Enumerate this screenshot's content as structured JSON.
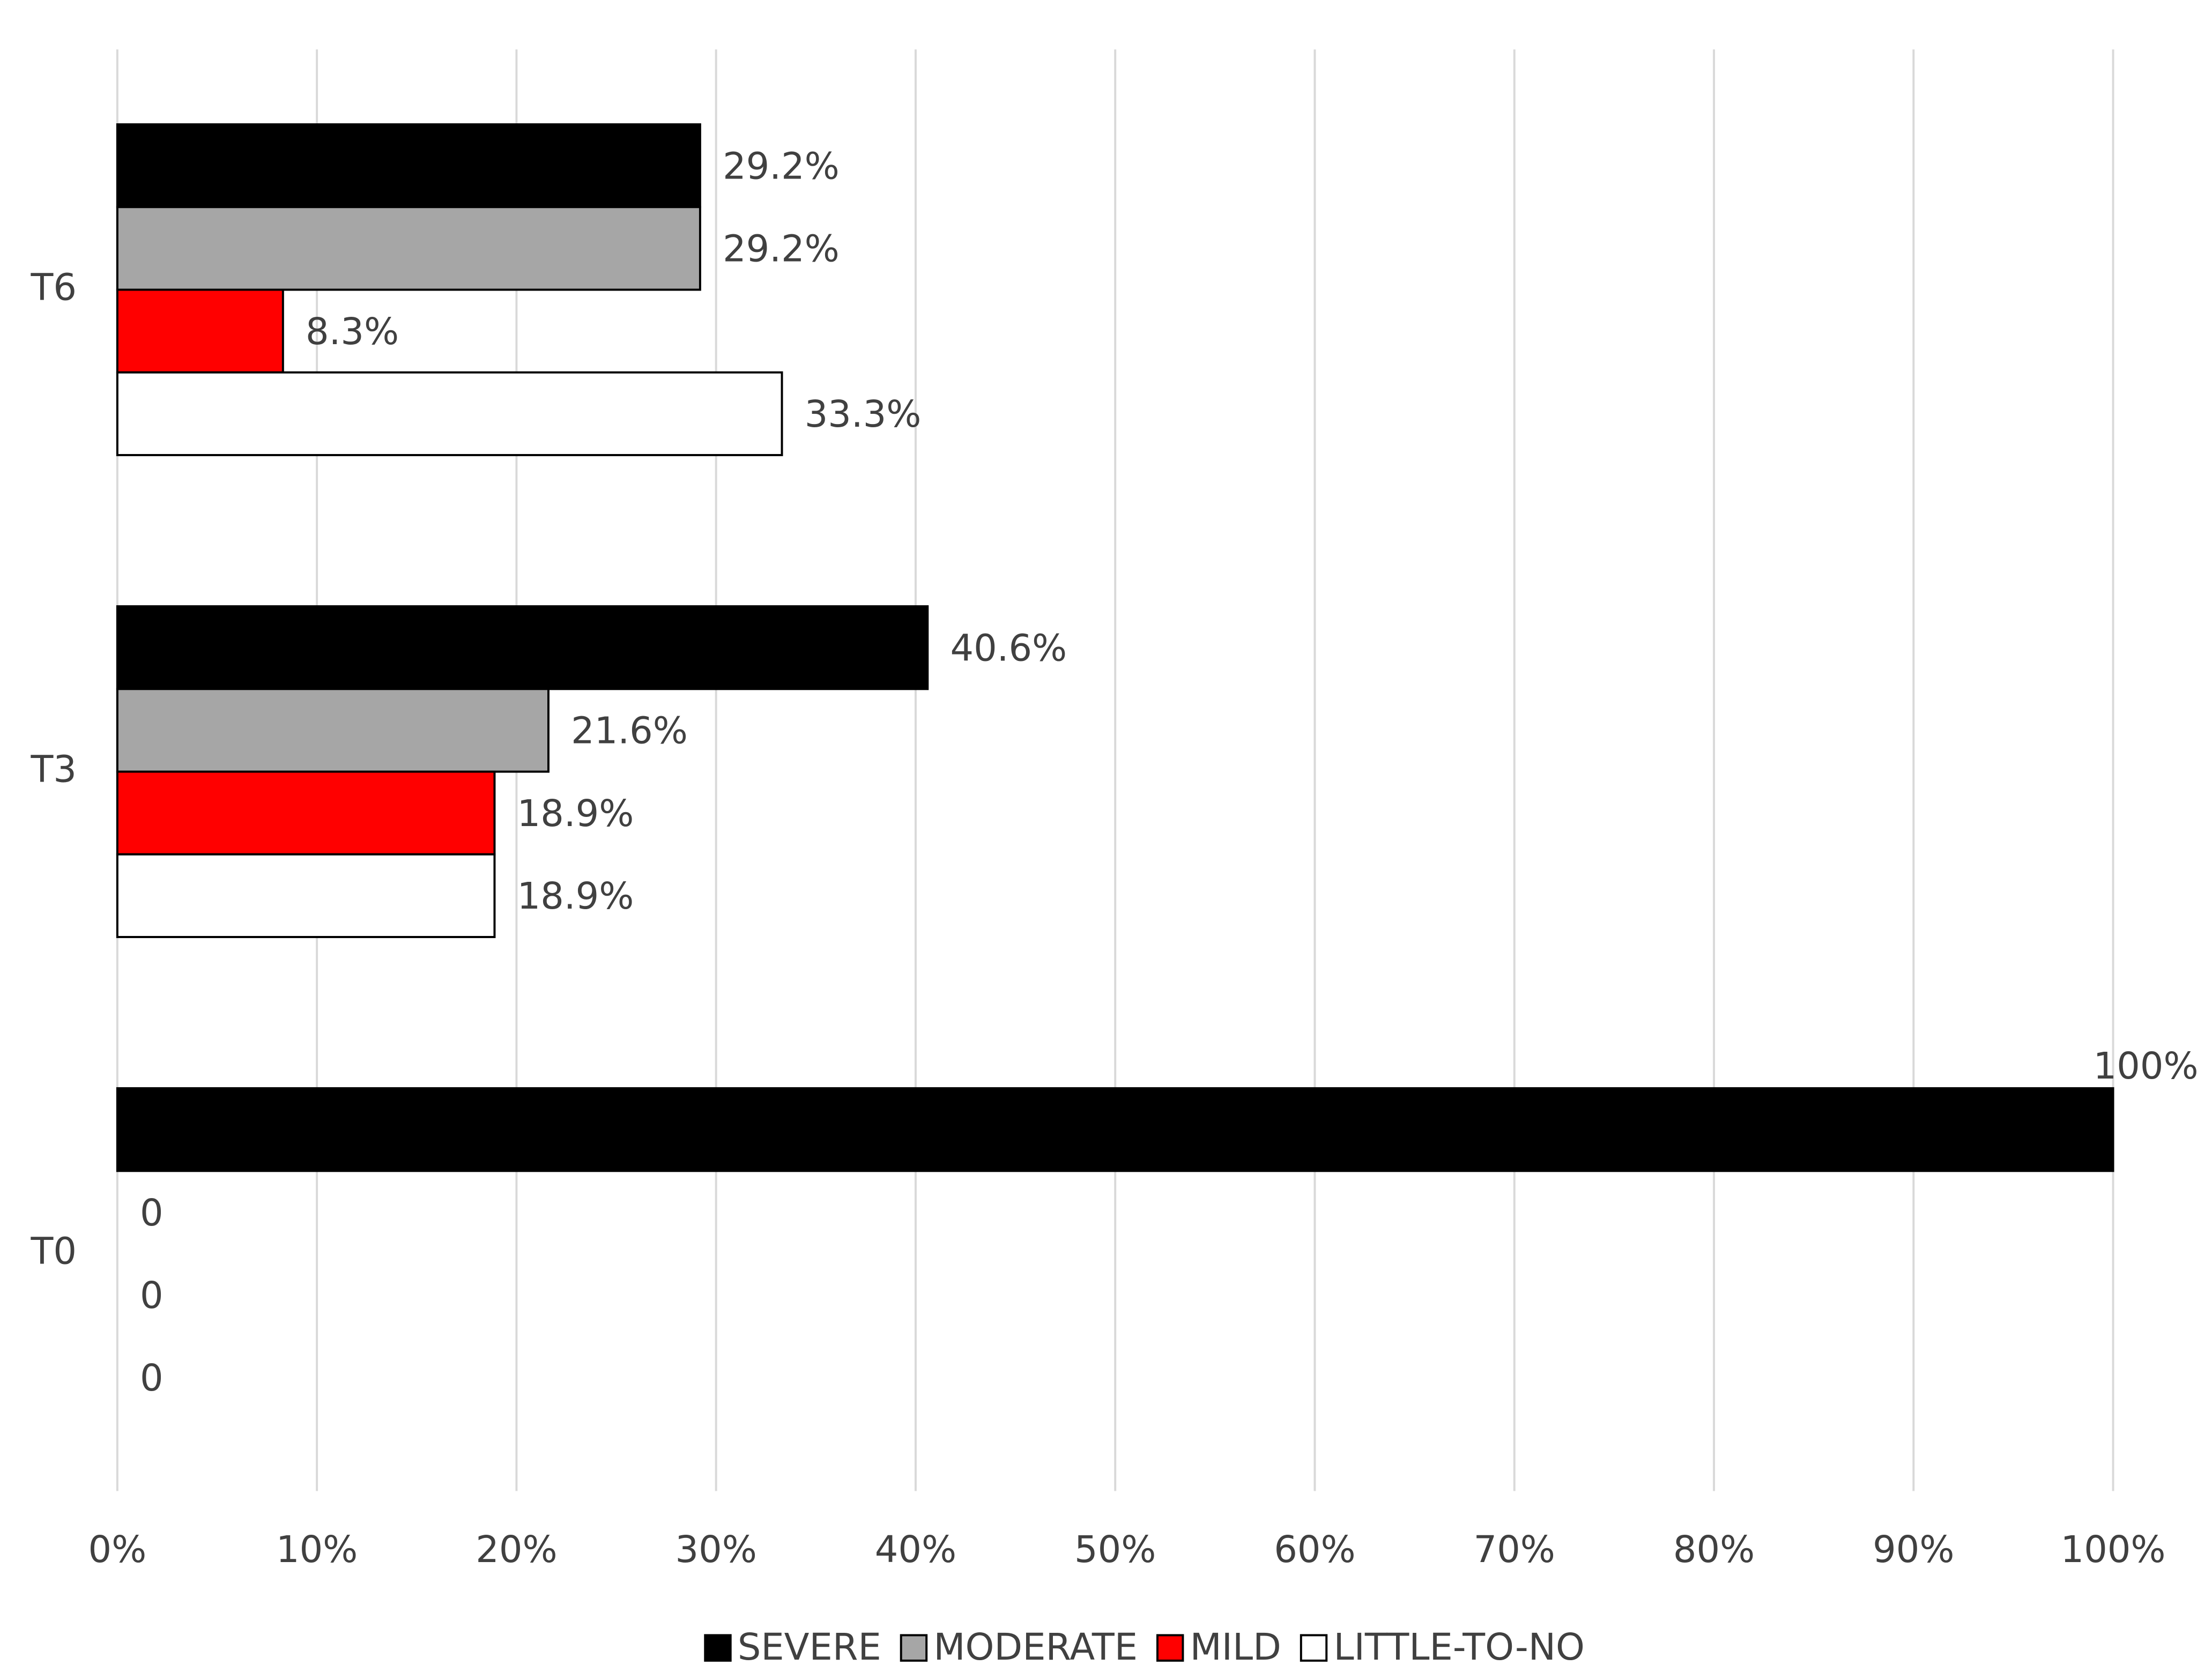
{
  "chart_data": {
    "type": "barh",
    "categories": [
      "T6",
      "T3",
      "T0"
    ],
    "series": [
      {
        "name": "SEVERE",
        "color": "#000000",
        "values": [
          29.2,
          40.6,
          100
        ],
        "value_labels": [
          "29.2%",
          "40.6%",
          "100%"
        ]
      },
      {
        "name": "MODERATE",
        "color": "#a6a6a6",
        "values": [
          29.2,
          21.6,
          0
        ],
        "value_labels": [
          "29.2%",
          "21.6%",
          "0"
        ]
      },
      {
        "name": "MILD",
        "color": "#ff0000",
        "values": [
          8.3,
          18.9,
          0
        ],
        "value_labels": [
          "8.3%",
          "18.9%",
          "0"
        ]
      },
      {
        "name": "LITTLE-TO-NO",
        "color": "#ffffff",
        "values": [
          33.3,
          18.9,
          0
        ],
        "value_labels": [
          "33.3%",
          "18.9%",
          "0"
        ]
      }
    ],
    "xlim": [
      0,
      100
    ],
    "xticks": [
      {
        "value": 0,
        "label": "0%"
      },
      {
        "value": 10,
        "label": "10%"
      },
      {
        "value": 20,
        "label": "20%"
      },
      {
        "value": 30,
        "label": "30%"
      },
      {
        "value": 40,
        "label": "40%"
      },
      {
        "value": 50,
        "label": "50%"
      },
      {
        "value": 60,
        "label": "60%"
      },
      {
        "value": 70,
        "label": "70%"
      },
      {
        "value": 80,
        "label": "80%"
      },
      {
        "value": 90,
        "label": "90%"
      },
      {
        "value": 100,
        "label": "100%"
      }
    ],
    "grid": true,
    "legend": "bottom"
  }
}
